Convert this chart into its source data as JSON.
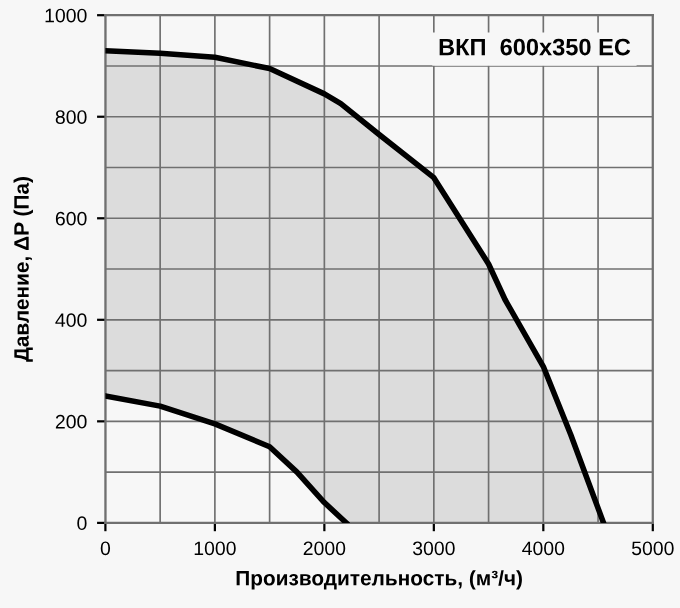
{
  "chart_data": {
    "type": "area",
    "title": "ВКП  600x350 EC",
    "xlabel": "Производительность, (м³/ч)",
    "ylabel": "Давление, ΔP (Па)",
    "xlim": [
      0,
      5000
    ],
    "ylim": [
      0,
      1000
    ],
    "xticks": [
      0,
      1000,
      2000,
      3000,
      4000,
      5000
    ],
    "yticks": [
      0,
      200,
      400,
      600,
      800,
      1000
    ],
    "grid": true,
    "series": [
      {
        "color": "#dcdcdc",
        "x": [
          0,
          500,
          1000,
          1500,
          2000,
          2150,
          2500,
          3000,
          3500,
          3650,
          4000,
          4250,
          4550
        ],
        "values": [
          930,
          925,
          917,
          895,
          845,
          826,
          765,
          680,
          510,
          440,
          308,
          174,
          0
        ]
      },
      {
        "color": "#f7f7f7",
        "x": [
          0,
          500,
          1000,
          1500,
          1750,
          2000,
          2200
        ],
        "values": [
          250,
          230,
          195,
          150,
          100,
          40,
          0
        ]
      }
    ]
  }
}
